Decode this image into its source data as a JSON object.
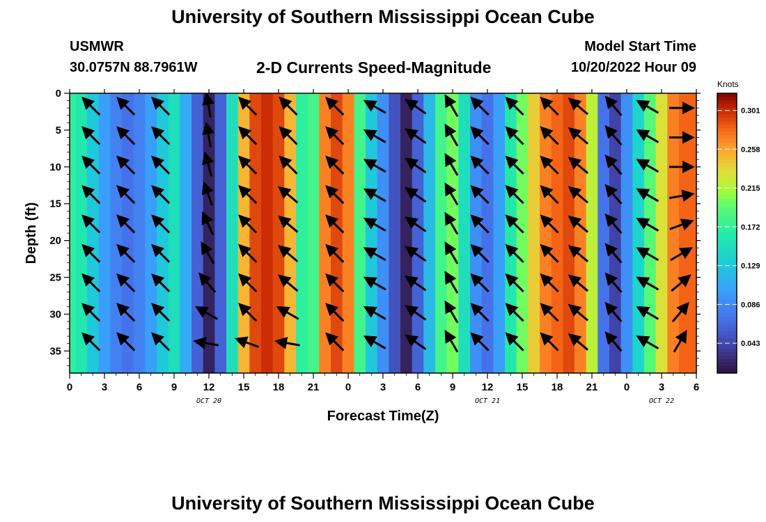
{
  "header": {
    "title": "University of Southern Mississippi Ocean Cube",
    "station": "USMWR",
    "coords": "30.0757N  88.7961W",
    "product": "2-D Currents Speed-Magnitude",
    "start_label": "Model Start Time",
    "start_value": "10/20/2022 Hour 09"
  },
  "footer": {
    "title": "University of Southern Mississippi Ocean Cube"
  },
  "chart_data": {
    "type": "heatmap",
    "title": "2-D Currents Speed-Magnitude",
    "xlabel": "Forecast Time(Z)",
    "ylabel": "Depth (ft)",
    "x_unit": "forecast hour from 2022-10-20 00Z",
    "x_range": [
      0,
      54
    ],
    "y_range": [
      0,
      38
    ],
    "y_inverted": true,
    "x_tick_values": [
      0,
      3,
      6,
      9,
      12,
      15,
      18,
      21,
      24,
      27,
      30,
      33,
      36,
      39,
      42,
      45,
      48,
      51,
      54
    ],
    "x_tick_labels": [
      "0",
      "3",
      "6",
      "9",
      "12",
      "15",
      "18",
      "21",
      "0",
      "3",
      "6",
      "9",
      "12",
      "15",
      "18",
      "21",
      "0",
      "3",
      "6"
    ],
    "y_tick_values": [
      0,
      5,
      10,
      15,
      20,
      25,
      30,
      35
    ],
    "y_tick_labels": [
      "0",
      "5",
      "10",
      "15",
      "20",
      "25",
      "30",
      "35"
    ],
    "date_labels": [
      {
        "x": 12,
        "text": "OCT 20"
      },
      {
        "x": 36,
        "text": "OCT 21"
      },
      {
        "x": 51,
        "text": "OCT 22"
      }
    ],
    "colorbar": {
      "title": "Knots",
      "ticks": [
        0.301,
        0.258,
        0.215,
        0.172,
        0.129,
        0.086,
        0.043
      ],
      "range": [
        0.01,
        0.32
      ]
    },
    "speed_profile": {
      "times": [
        0,
        1,
        2,
        3,
        4,
        5,
        6,
        7,
        8,
        9,
        10,
        11,
        12,
        13,
        14,
        15,
        16,
        17,
        18,
        19,
        20,
        21,
        22,
        23,
        24,
        25,
        26,
        27,
        28,
        29,
        30,
        31,
        32,
        33,
        34,
        35,
        36,
        37,
        38,
        39,
        40,
        41,
        42,
        43,
        44,
        45,
        46,
        47,
        48,
        49,
        50,
        51,
        52,
        53,
        54
      ],
      "speeds": [
        0.17,
        0.16,
        0.13,
        0.1,
        0.08,
        0.07,
        0.08,
        0.1,
        0.13,
        0.15,
        0.11,
        0.06,
        0.02,
        0.06,
        0.15,
        0.25,
        0.29,
        0.3,
        0.29,
        0.25,
        0.17,
        0.18,
        0.27,
        0.29,
        0.27,
        0.18,
        0.13,
        0.09,
        0.05,
        0.02,
        0.06,
        0.12,
        0.18,
        0.2,
        0.15,
        0.09,
        0.07,
        0.1,
        0.16,
        0.2,
        0.24,
        0.27,
        0.28,
        0.29,
        0.27,
        0.22,
        0.07,
        0.04,
        0.09,
        0.14,
        0.19,
        0.23,
        0.27,
        0.28,
        0.28
      ]
    },
    "vector_rows_depth_ft": [
      2,
      6,
      10,
      14,
      18,
      22,
      26,
      30,
      34
    ],
    "vector_times": [
      2,
      5,
      8,
      12,
      15.5,
      19,
      23,
      26.5,
      30,
      33,
      35.5,
      38.5,
      41.5,
      44,
      47,
      50,
      52.5
    ],
    "vector_angles_deg": [
      [
        135,
        135,
        135,
        100,
        135,
        135,
        135,
        150,
        145,
        120,
        135,
        135,
        135,
        140,
        130,
        150,
        0
      ],
      [
        135,
        135,
        135,
        100,
        135,
        135,
        135,
        150,
        145,
        120,
        135,
        135,
        135,
        140,
        130,
        150,
        0
      ],
      [
        135,
        135,
        135,
        105,
        135,
        135,
        135,
        150,
        145,
        120,
        135,
        135,
        135,
        140,
        130,
        150,
        0
      ],
      [
        135,
        135,
        135,
        110,
        135,
        140,
        135,
        150,
        145,
        120,
        135,
        135,
        135,
        140,
        130,
        150,
        10
      ],
      [
        135,
        135,
        135,
        115,
        135,
        140,
        135,
        150,
        145,
        120,
        135,
        135,
        135,
        140,
        130,
        150,
        20
      ],
      [
        135,
        135,
        135,
        120,
        135,
        140,
        135,
        150,
        145,
        120,
        135,
        135,
        135,
        140,
        130,
        150,
        30
      ],
      [
        135,
        135,
        135,
        130,
        135,
        140,
        135,
        150,
        145,
        120,
        135,
        135,
        135,
        140,
        130,
        150,
        40
      ],
      [
        135,
        135,
        135,
        150,
        135,
        150,
        135,
        150,
        145,
        120,
        135,
        135,
        135,
        140,
        130,
        150,
        50
      ],
      [
        135,
        135,
        135,
        170,
        160,
        170,
        135,
        150,
        145,
        120,
        135,
        135,
        135,
        140,
        130,
        150,
        60
      ]
    ]
  }
}
